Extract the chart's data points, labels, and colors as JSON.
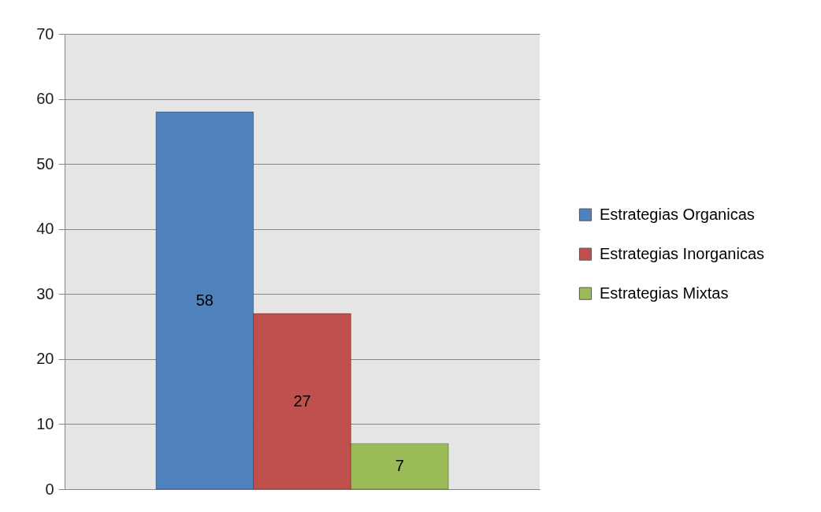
{
  "chart_data": {
    "type": "bar",
    "categories": [
      null
    ],
    "series": [
      {
        "name": "Estrategias Organicas",
        "color": "#4f81bd",
        "values": [
          58
        ]
      },
      {
        "name": "Estrategias Inorganicas",
        "color": "#c0504d",
        "values": [
          27
        ]
      },
      {
        "name": "Estrategias Mixtas",
        "color": "#9bbb59",
        "values": [
          7
        ]
      }
    ],
    "ylim": [
      0,
      70
    ],
    "yticks": [
      0,
      10,
      20,
      30,
      40,
      50,
      60,
      70
    ],
    "grid": "y",
    "legend": "right",
    "data_labels": true,
    "tick_labels": "y"
  }
}
